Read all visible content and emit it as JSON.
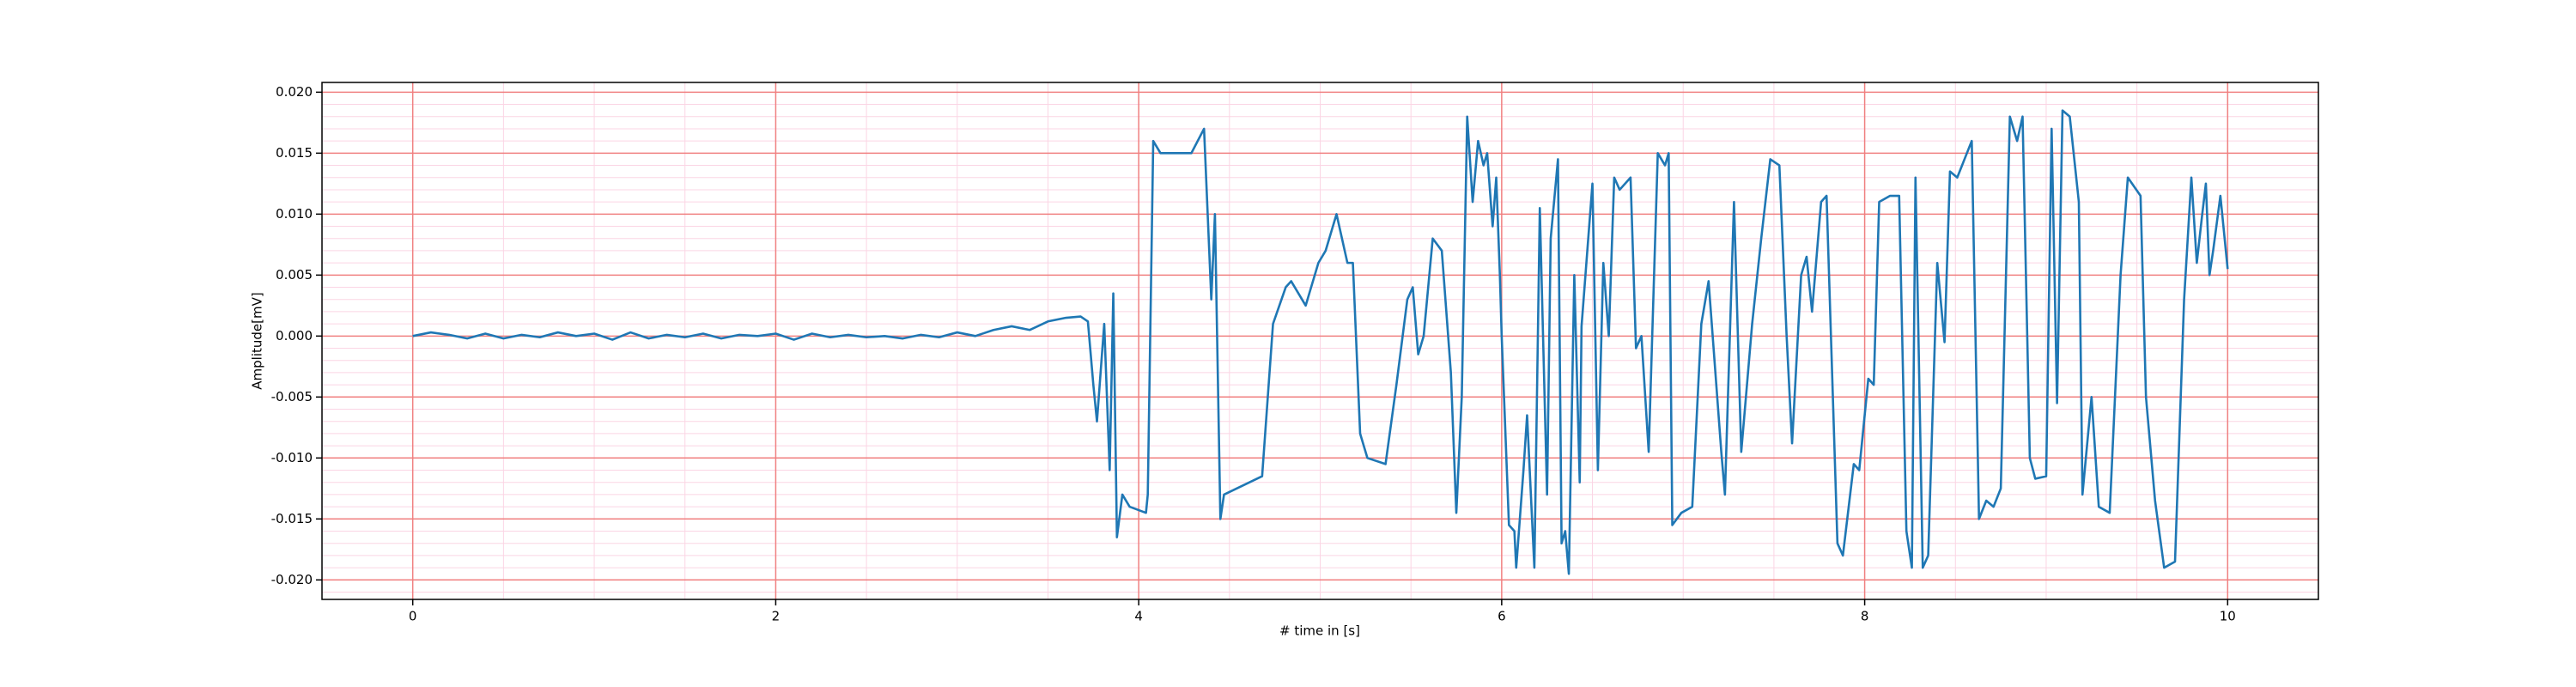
{
  "chart_data": {
    "type": "line",
    "xlabel": "# time in [s]",
    "ylabel": "Amplitude[mV]",
    "xlim": [
      -0.5,
      10.5
    ],
    "ylim": [
      -0.0216,
      0.0208
    ],
    "xticks": [
      0,
      2,
      4,
      6,
      8,
      10
    ],
    "yticks": [
      {
        "value": -0.02,
        "label": "-0.020"
      },
      {
        "value": -0.015,
        "label": "-0.015"
      },
      {
        "value": -0.01,
        "label": "-0.010"
      },
      {
        "value": -0.005,
        "label": "-0.005"
      },
      {
        "value": 0,
        "label": "0.000"
      },
      {
        "value": 0.005,
        "label": "0.005"
      },
      {
        "value": 0.01,
        "label": "0.010"
      },
      {
        "value": 0.015,
        "label": "0.015"
      },
      {
        "value": 0.02,
        "label": "0.020"
      }
    ],
    "grid": true,
    "grid_color": "#f08080",
    "minor_grid_color": "#fbd5e4",
    "xminorticks": [
      -0.5,
      0.5,
      1,
      1.5,
      2.5,
      3,
      3.5,
      4.5,
      5,
      5.5,
      6.5,
      7,
      7.5,
      8.5,
      9,
      9.5,
      10.5
    ],
    "yminorticks": [
      -0.021,
      -0.019,
      -0.018,
      -0.017,
      -0.016,
      -0.014,
      -0.013,
      -0.012,
      -0.011,
      -0.009,
      -0.008,
      -0.007,
      -0.006,
      -0.004,
      -0.003,
      -0.002,
      -0.001,
      0.001,
      0.002,
      0.003,
      0.004,
      0.006,
      0.007,
      0.008,
      0.009,
      0.011,
      0.012,
      0.013,
      0.014,
      0.016,
      0.017,
      0.018,
      0.019
    ],
    "series": [
      {
        "color": "#1f77b4",
        "x": [
          0,
          0.1,
          0.2,
          0.3,
          0.4,
          0.5,
          0.6,
          0.7,
          0.8,
          0.9,
          1.0,
          1.1,
          1.2,
          1.3,
          1.4,
          1.5,
          1.6,
          1.7,
          1.8,
          1.9,
          2.0,
          2.1,
          2.2,
          2.3,
          2.4,
          2.5,
          2.6,
          2.7,
          2.8,
          2.9,
          3.0,
          3.1,
          3.2,
          3.3,
          3.4,
          3.5,
          3.6,
          3.68,
          3.72,
          3.75,
          3.77,
          3.81,
          3.84,
          3.86,
          3.88,
          3.91,
          3.95,
          4.04,
          4.05,
          4.08,
          4.12,
          4.2,
          4.29,
          4.36,
          4.4,
          4.42,
          4.45,
          4.47,
          4.68,
          4.74,
          4.81,
          4.84,
          4.92,
          4.99,
          5.03,
          5.09,
          5.15,
          5.18,
          5.22,
          5.26,
          5.36,
          5.42,
          5.48,
          5.51,
          5.54,
          5.57,
          5.62,
          5.67,
          5.72,
          5.75,
          5.78,
          5.81,
          5.84,
          5.87,
          5.9,
          5.92,
          5.95,
          5.97,
          5.99,
          6.0,
          6.04,
          6.07,
          6.08,
          6.12,
          6.14,
          6.18,
          6.21,
          6.25,
          6.27,
          6.31,
          6.33,
          6.35,
          6.37,
          6.4,
          6.43,
          6.44,
          6.5,
          6.53,
          6.56,
          6.59,
          6.62,
          6.65,
          6.71,
          6.74,
          6.77,
          6.81,
          6.86,
          6.9,
          6.92,
          6.94,
          6.99,
          7.05,
          7.1,
          7.14,
          7.21,
          7.23,
          7.28,
          7.32,
          7.38,
          7.43,
          7.48,
          7.53,
          7.57,
          7.6,
          7.65,
          7.68,
          7.71,
          7.76,
          7.79,
          7.85,
          7.88,
          7.94,
          7.97,
          8.02,
          8.05,
          8.08,
          8.14,
          8.19,
          8.23,
          8.26,
          8.28,
          8.32,
          8.35,
          8.4,
          8.44,
          8.47,
          8.51,
          8.55,
          8.59,
          8.63,
          8.67,
          8.71,
          8.75,
          8.8,
          8.84,
          8.87,
          8.91,
          8.94,
          9.0,
          9.03,
          9.06,
          9.09,
          9.13,
          9.18,
          9.2,
          9.25,
          9.29,
          9.35,
          9.41,
          9.45,
          9.52,
          9.55,
          9.6,
          9.65,
          9.71,
          9.76,
          9.8,
          9.83,
          9.86,
          9.88,
          9.9,
          9.92,
          9.96,
          10.0
        ],
        "values": [
          0,
          0.0003,
          0.0001,
          -0.0002,
          0.0002,
          -0.0002,
          0.0001,
          -0.0001,
          0.0003,
          0,
          0.0002,
          -0.0003,
          0.0003,
          -0.0002,
          0.0001,
          -0.0001,
          0.0002,
          -0.0002,
          0.0001,
          0,
          0.0002,
          -0.0003,
          0.0002,
          -0.0001,
          0.0001,
          -0.0001,
          0,
          -0.0002,
          0.0001,
          -0.0001,
          0.0003,
          0,
          0.0005,
          0.0008,
          0.0005,
          0.0012,
          0.0015,
          0.0016,
          0.0012,
          -0.004,
          -0.007,
          0.001,
          -0.011,
          0.0035,
          -0.0165,
          -0.013,
          -0.014,
          -0.0145,
          -0.013,
          0.016,
          0.015,
          0.015,
          0.015,
          0.017,
          0.003,
          0.01,
          -0.015,
          -0.013,
          -0.0115,
          0.001,
          0.004,
          0.0045,
          0.0025,
          0.006,
          0.007,
          0.01,
          0.006,
          0.006,
          -0.008,
          -0.01,
          -0.0105,
          -0.004,
          0.003,
          0.004,
          -0.0015,
          0,
          0.008,
          0.007,
          -0.003,
          -0.0145,
          -0.005,
          0.018,
          0.011,
          0.016,
          0.014,
          0.015,
          0.009,
          0.013,
          0.005,
          0,
          -0.0155,
          -0.016,
          -0.019,
          -0.011,
          -0.0065,
          -0.019,
          0.0105,
          -0.013,
          0.008,
          0.0145,
          -0.017,
          -0.016,
          -0.0195,
          0.005,
          -0.012,
          0.0008,
          0.0125,
          -0.011,
          0.006,
          0,
          0.013,
          0.012,
          0.013,
          -0.001,
          0,
          -0.0095,
          0.015,
          0.014,
          0.015,
          -0.0155,
          -0.0145,
          -0.014,
          0.001,
          0.0045,
          -0.0095,
          -0.013,
          0.011,
          -0.0095,
          0.001,
          0.008,
          0.0145,
          0.014,
          0,
          -0.0088,
          0.005,
          0.0065,
          0.002,
          0.011,
          0.0115,
          -0.017,
          -0.018,
          -0.0105,
          -0.011,
          -0.0035,
          -0.004,
          0.011,
          0.0115,
          0.0115,
          -0.016,
          -0.019,
          0.013,
          -0.019,
          -0.018,
          0.006,
          -0.0005,
          0.0135,
          0.013,
          0.0145,
          0.016,
          -0.015,
          -0.0135,
          -0.014,
          -0.0125,
          0.018,
          0.016,
          0.018,
          -0.01,
          -0.0117,
          -0.0115,
          0.017,
          -0.0055,
          0.0185,
          0.018,
          0.011,
          -0.013,
          -0.005,
          -0.014,
          -0.0145,
          0.005,
          0.013,
          0.0115,
          -0.005,
          -0.0135,
          -0.019,
          -0.0185,
          0.003,
          0.013,
          0.006,
          0.01,
          0.0125,
          0.005,
          0.007,
          0.0115,
          0.0055
        ]
      }
    ]
  }
}
